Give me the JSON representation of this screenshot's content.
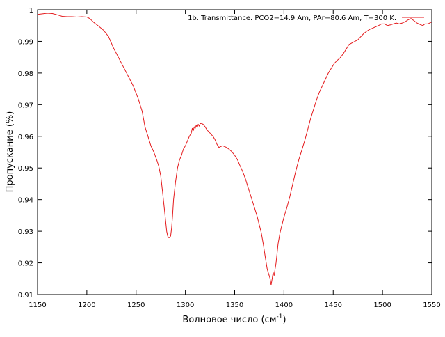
{
  "chart_data": {
    "type": "line",
    "title": "",
    "xlabel": "Волновое число (см",
    "xlabel_sup": "-1",
    "xlabel_tail": ")",
    "ylabel": "Пропускание (%)",
    "xlim": [
      1150,
      1550
    ],
    "ylim": [
      0.91,
      1.0
    ],
    "xticks": [
      1150,
      1200,
      1250,
      1300,
      1350,
      1400,
      1450,
      1500,
      1550
    ],
    "yticks": [
      0.91,
      0.92,
      0.93,
      0.94,
      0.95,
      0.96,
      0.97,
      0.98,
      0.99,
      1.0
    ],
    "ytick_labels": [
      "0.91",
      "0.92",
      "0.93",
      "0.94",
      "0.95",
      "0.96",
      "0.97",
      "0.98",
      "0.99",
      "1"
    ],
    "grid": false,
    "legend_position": "top-right",
    "series": [
      {
        "name": "1b. Transmittance. PCO2=14.9 Am, PAr=80.6 Am, T=300 K.",
        "color": "#e41a1c",
        "points": [
          [
            1150,
            0.9985
          ],
          [
            1155,
            0.9987
          ],
          [
            1160,
            0.9989
          ],
          [
            1165,
            0.9988
          ],
          [
            1170,
            0.9984
          ],
          [
            1175,
            0.9979
          ],
          [
            1180,
            0.9978
          ],
          [
            1185,
            0.9978
          ],
          [
            1190,
            0.9977
          ],
          [
            1195,
            0.9978
          ],
          [
            1200,
            0.9977
          ],
          [
            1203,
            0.9972
          ],
          [
            1207,
            0.996
          ],
          [
            1212,
            0.9948
          ],
          [
            1217,
            0.9935
          ],
          [
            1222,
            0.9915
          ],
          [
            1227,
            0.988
          ],
          [
            1232,
            0.985
          ],
          [
            1237,
            0.982
          ],
          [
            1242,
            0.979
          ],
          [
            1247,
            0.976
          ],
          [
            1252,
            0.972
          ],
          [
            1256,
            0.968
          ],
          [
            1259,
            0.963
          ],
          [
            1262,
            0.96
          ],
          [
            1265,
            0.957
          ],
          [
            1268,
            0.955
          ],
          [
            1271,
            0.9525
          ],
          [
            1273,
            0.9505
          ],
          [
            1275,
            0.9475
          ],
          [
            1277,
            0.942
          ],
          [
            1279,
            0.936
          ],
          [
            1281,
            0.93
          ],
          [
            1282,
            0.9285
          ],
          [
            1283,
            0.928
          ],
          [
            1284,
            0.928
          ],
          [
            1285,
            0.9285
          ],
          [
            1286,
            0.931
          ],
          [
            1287,
            0.935
          ],
          [
            1288,
            0.94
          ],
          [
            1290,
            0.9455
          ],
          [
            1292,
            0.95
          ],
          [
            1294,
            0.9525
          ],
          [
            1296,
            0.954
          ],
          [
            1298,
            0.956
          ],
          [
            1300,
            0.957
          ],
          [
            1302,
            0.9585
          ],
          [
            1304,
            0.96
          ],
          [
            1306,
            0.961
          ],
          [
            1307,
            0.9625
          ],
          [
            1308,
            0.9618
          ],
          [
            1309,
            0.963
          ],
          [
            1310,
            0.9625
          ],
          [
            1311,
            0.9635
          ],
          [
            1312,
            0.9628
          ],
          [
            1313,
            0.9638
          ],
          [
            1314,
            0.9632
          ],
          [
            1315,
            0.964
          ],
          [
            1316,
            0.9641
          ],
          [
            1318,
            0.9638
          ],
          [
            1320,
            0.963
          ],
          [
            1322,
            0.962
          ],
          [
            1325,
            0.961
          ],
          [
            1328,
            0.96
          ],
          [
            1330,
            0.959
          ],
          [
            1332,
            0.9575
          ],
          [
            1334,
            0.9565
          ],
          [
            1336,
            0.9568
          ],
          [
            1338,
            0.957
          ],
          [
            1341,
            0.9566
          ],
          [
            1344,
            0.956
          ],
          [
            1347,
            0.9552
          ],
          [
            1350,
            0.954
          ],
          [
            1353,
            0.9525
          ],
          [
            1355,
            0.951
          ],
          [
            1358,
            0.949
          ],
          [
            1361,
            0.9465
          ],
          [
            1364,
            0.9435
          ],
          [
            1367,
            0.9405
          ],
          [
            1370,
            0.9375
          ],
          [
            1373,
            0.9345
          ],
          [
            1375,
            0.932
          ],
          [
            1377,
            0.9295
          ],
          [
            1379,
            0.926
          ],
          [
            1381,
            0.922
          ],
          [
            1383,
            0.918
          ],
          [
            1385,
            0.916
          ],
          [
            1386,
            0.915
          ],
          [
            1387,
            0.913
          ],
          [
            1388,
            0.915
          ],
          [
            1389,
            0.917
          ],
          [
            1390,
            0.916
          ],
          [
            1391,
            0.918
          ],
          [
            1392,
            0.92
          ],
          [
            1393,
            0.923
          ],
          [
            1394,
            0.926
          ],
          [
            1396,
            0.9295
          ],
          [
            1398,
            0.932
          ],
          [
            1400,
            0.9345
          ],
          [
            1403,
            0.9375
          ],
          [
            1406,
            0.941
          ],
          [
            1409,
            0.945
          ],
          [
            1412,
            0.949
          ],
          [
            1415,
            0.9525
          ],
          [
            1418,
            0.9555
          ],
          [
            1421,
            0.9585
          ],
          [
            1424,
            0.962
          ],
          [
            1427,
            0.9655
          ],
          [
            1430,
            0.9685
          ],
          [
            1433,
            0.9715
          ],
          [
            1436,
            0.974
          ],
          [
            1439,
            0.976
          ],
          [
            1442,
            0.978
          ],
          [
            1445,
            0.98
          ],
          [
            1448,
            0.9815
          ],
          [
            1451,
            0.983
          ],
          [
            1454,
            0.984
          ],
          [
            1457,
            0.9848
          ],
          [
            1460,
            0.986
          ],
          [
            1463,
            0.9875
          ],
          [
            1466,
            0.989
          ],
          [
            1469,
            0.9895
          ],
          [
            1472,
            0.99
          ],
          [
            1475,
            0.9905
          ],
          [
            1478,
            0.9915
          ],
          [
            1481,
            0.9925
          ],
          [
            1484,
            0.9932
          ],
          [
            1487,
            0.9938
          ],
          [
            1490,
            0.9942
          ],
          [
            1493,
            0.9946
          ],
          [
            1496,
            0.995
          ],
          [
            1499,
            0.9955
          ],
          [
            1502,
            0.9955
          ],
          [
            1505,
            0.995
          ],
          [
            1508,
            0.9952
          ],
          [
            1511,
            0.9955
          ],
          [
            1514,
            0.9958
          ],
          [
            1517,
            0.9955
          ],
          [
            1520,
            0.9958
          ],
          [
            1523,
            0.9962
          ],
          [
            1526,
            0.9968
          ],
          [
            1529,
            0.9972
          ],
          [
            1532,
            0.9965
          ],
          [
            1535,
            0.9958
          ],
          [
            1537,
            0.9955
          ],
          [
            1539,
            0.9952
          ],
          [
            1541,
            0.995
          ],
          [
            1543,
            0.9955
          ],
          [
            1546,
            0.9955
          ],
          [
            1549,
            0.996
          ],
          [
            1550,
            0.9962
          ]
        ]
      }
    ]
  }
}
